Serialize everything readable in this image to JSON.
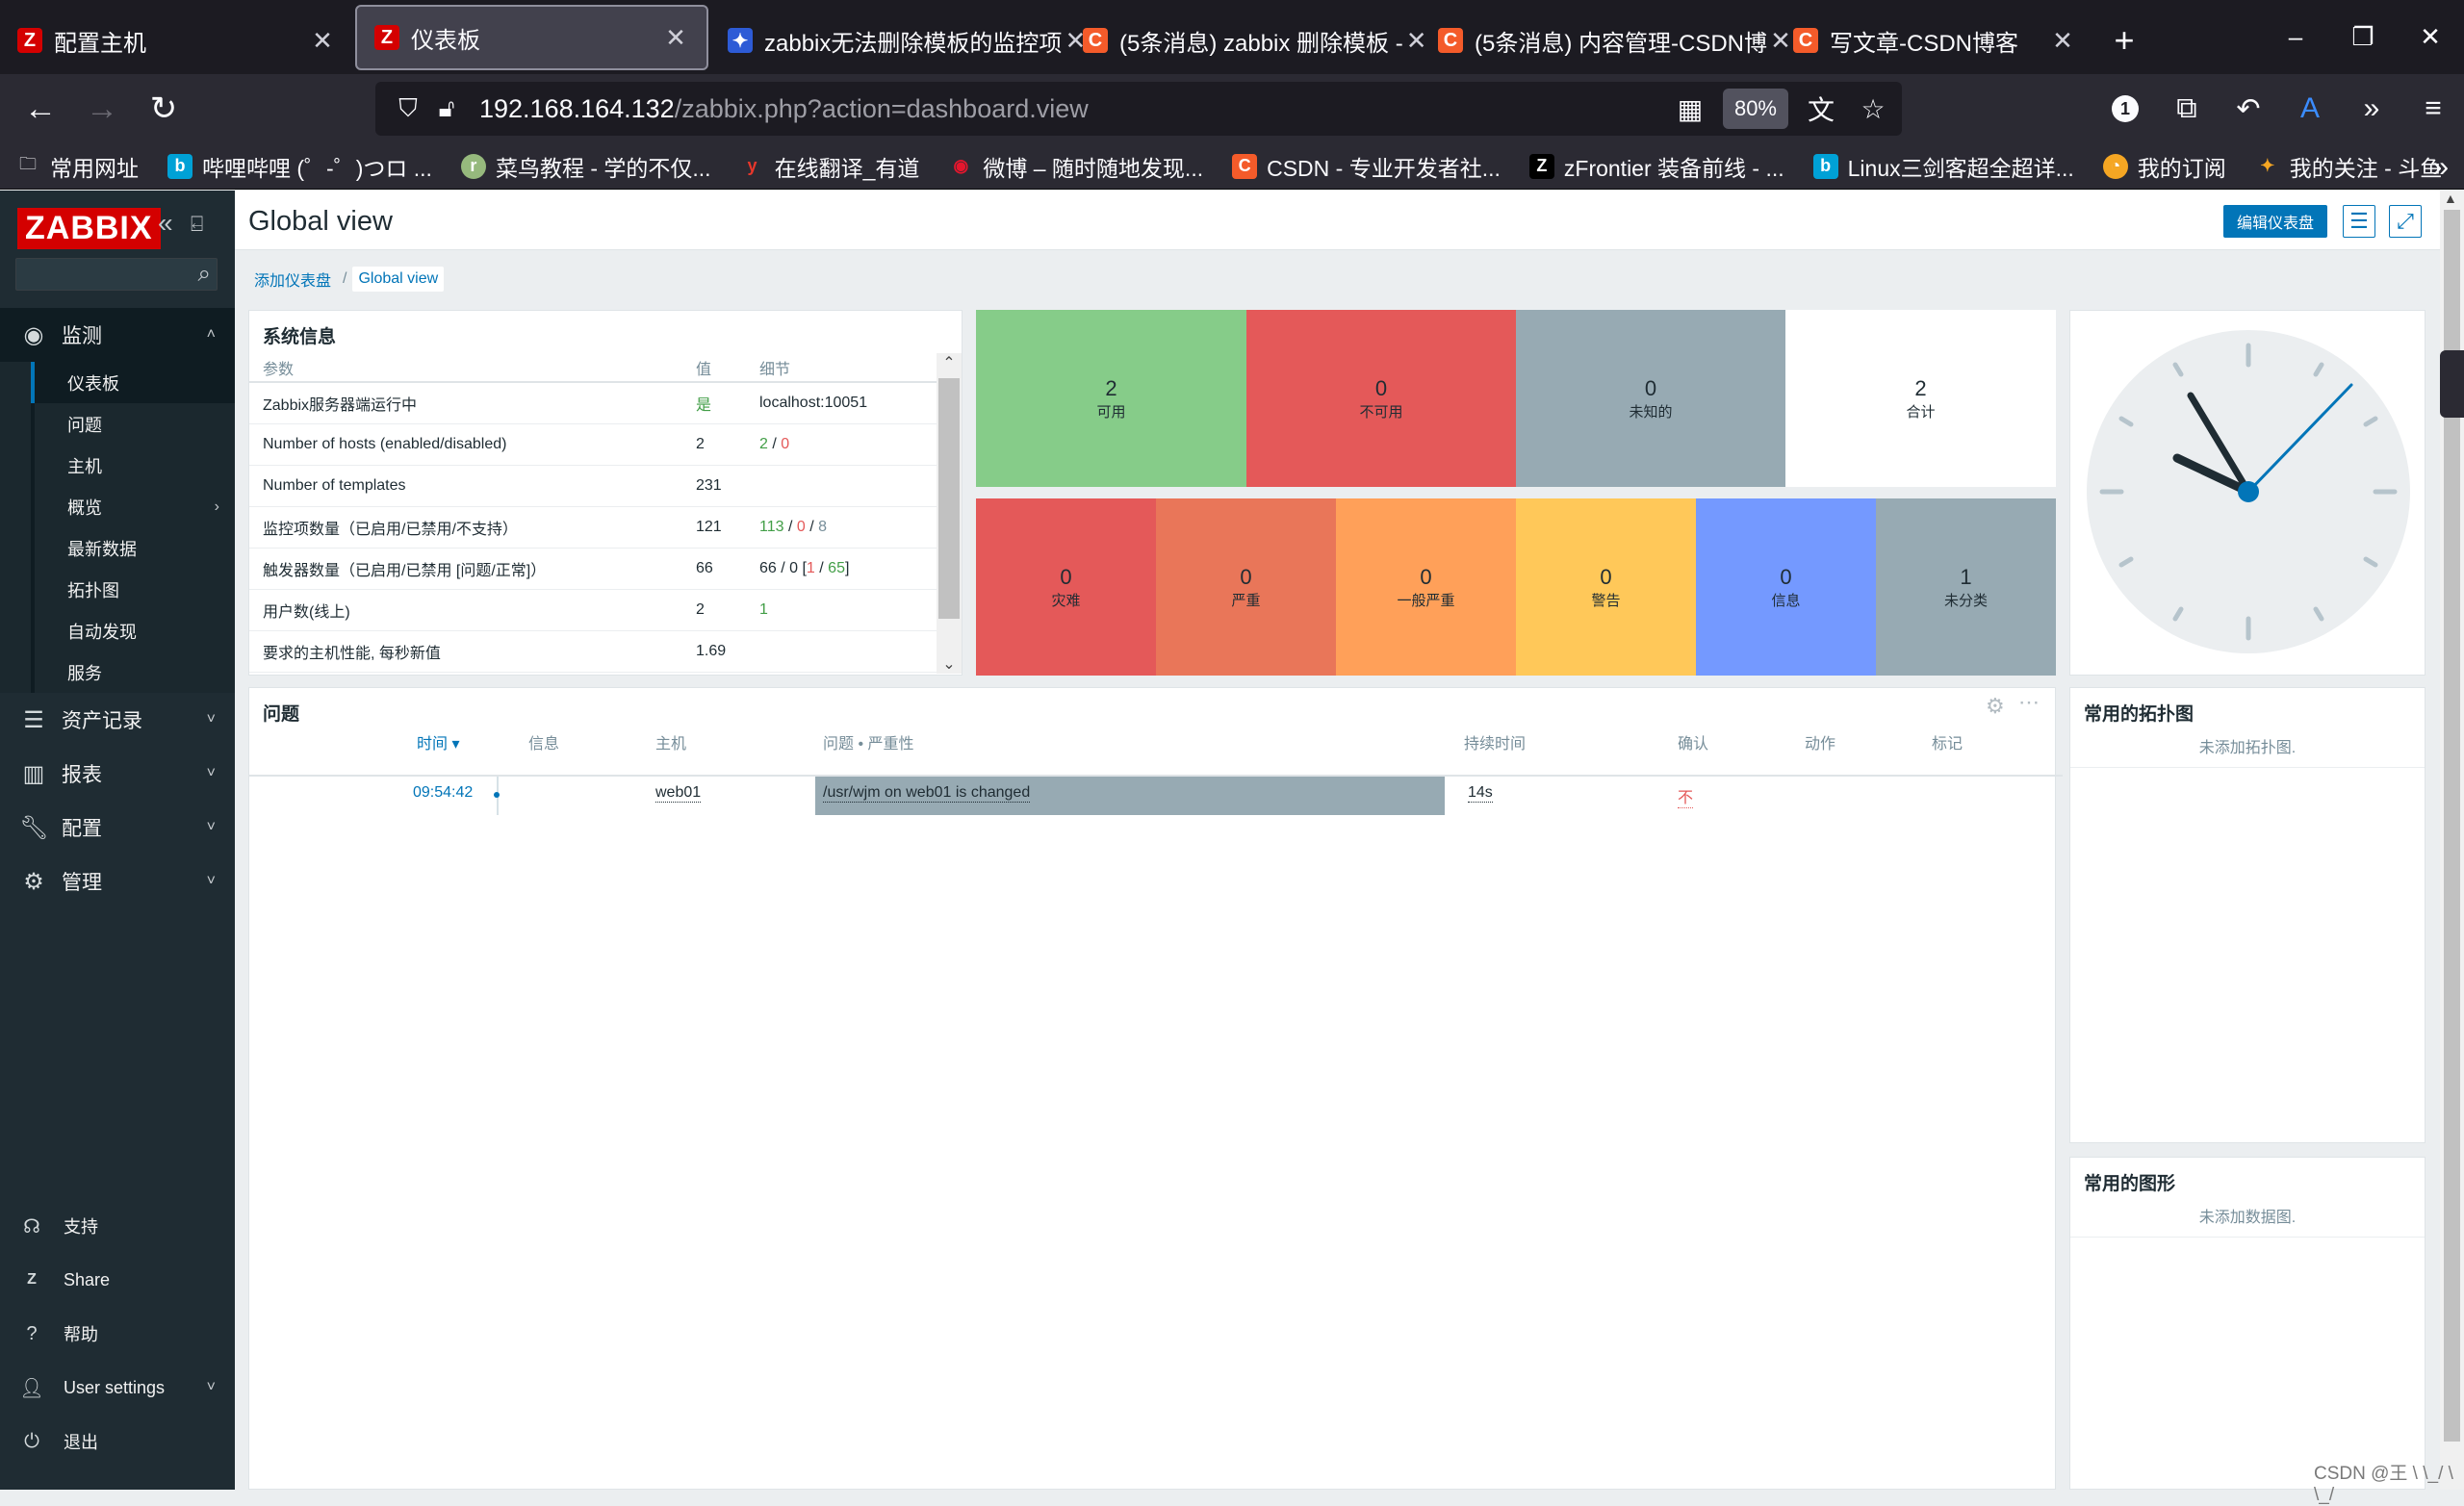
{
  "browser": {
    "tabs": [
      {
        "title": "配置主机",
        "favicon": "Z",
        "color": "#d40000"
      },
      {
        "title": "仪表板",
        "favicon": "Z",
        "color": "#d40000",
        "active": true
      },
      {
        "title": "zabbix无法删除模板的监控项",
        "favicon": "✦",
        "color": "#2d5bd6"
      },
      {
        "title": "(5条消息) zabbix 删除模板 -",
        "favicon": "C",
        "color": "#f45b2a"
      },
      {
        "title": "(5条消息) 内容管理-CSDN博",
        "favicon": "C",
        "color": "#f45b2a"
      },
      {
        "title": "写文章-CSDN博客",
        "favicon": "C",
        "color": "#f45b2a"
      }
    ],
    "url_host": "192.168.164.132",
    "url_path": "/zabbix.php?action=dashboard.view",
    "zoom": "80%",
    "badge": "1",
    "bookmarks": [
      {
        "label": "常用网址",
        "icon": "folder-icon"
      },
      {
        "label": "哔哩哔哩 (゜-゜)つロ ...",
        "icon": "bilibili-icon"
      },
      {
        "label": "菜鸟教程 - 学的不仅...",
        "icon": "runoob-icon"
      },
      {
        "label": "在线翻译_有道",
        "icon": "youdao-icon"
      },
      {
        "label": "微博 – 随时随地发现...",
        "icon": "weibo-icon"
      },
      {
        "label": "CSDN - 专业开发者社...",
        "icon": "csdn-icon"
      },
      {
        "label": "zFrontier 装备前线 - ...",
        "icon": "zfrontier-icon"
      },
      {
        "label": "Linux三剑客超全超详...",
        "icon": "bilibili-icon"
      },
      {
        "label": "我的订阅",
        "icon": "subscription-icon"
      },
      {
        "label": "我的关注 - 斗鱼",
        "icon": "douyu-icon"
      }
    ]
  },
  "sidebar": {
    "logo": "ZABBIX",
    "main": [
      {
        "label": "监测",
        "icon": "eye-icon",
        "open": true
      },
      {
        "label": "资产记录",
        "icon": "list-icon"
      },
      {
        "label": "报表",
        "icon": "bar-chart-icon"
      },
      {
        "label": "配置",
        "icon": "wrench-icon"
      },
      {
        "label": "管理",
        "icon": "gear-icon"
      }
    ],
    "submenu": [
      "仪表板",
      "问题",
      "主机",
      "概览",
      "最新数据",
      "拓扑图",
      "自动发现",
      "服务"
    ],
    "bottom": [
      {
        "label": "支持",
        "icon": "headset-icon"
      },
      {
        "label": "Share",
        "icon": "share-icon"
      },
      {
        "label": "帮助",
        "icon": "help-icon"
      },
      {
        "label": "User settings",
        "icon": "user-icon"
      },
      {
        "label": "退出",
        "icon": "power-icon"
      }
    ]
  },
  "header": {
    "title": "Global view",
    "edit_label": "编辑仪表盘"
  },
  "breadcrumb": [
    "添加仪表盘",
    "Global view"
  ],
  "sysinfo": {
    "title": "系统信息",
    "headers": [
      "参数",
      "值",
      "细节"
    ],
    "rows": [
      {
        "param": "Zabbix服务器端运行中",
        "value": "是",
        "detail": "localhost:10051"
      },
      {
        "param": "Number of hosts (enabled/disabled)",
        "value": "2",
        "d1": "2",
        "d2": "0"
      },
      {
        "param": "Number of templates",
        "value": "231",
        "detail": ""
      },
      {
        "param": "监控项数量（已启用/已禁用/不支持）",
        "value": "121",
        "d1": "113",
        "d2": "0",
        "d3": "8"
      },
      {
        "param": "触发器数量（已启用/已禁用 [问题/正常]）",
        "value": "66",
        "d1": "66 / 0 [",
        "d2": "1",
        "d3": "65",
        "d4": "]"
      },
      {
        "param": "用户数(线上)",
        "value": "2",
        "detail": "1"
      },
      {
        "param": "要求的主机性能, 每秒新值",
        "value": "1.69",
        "detail": ""
      }
    ]
  },
  "host_availability": [
    {
      "count": "2",
      "label": "可用",
      "color": "#86cc89"
    },
    {
      "count": "0",
      "label": "不可用",
      "color": "#e45959"
    },
    {
      "count": "0",
      "label": "未知的",
      "color": "#97aab3"
    },
    {
      "count": "2",
      "label": "合计",
      "color": "#ffffff"
    }
  ],
  "severity": [
    {
      "count": "0",
      "label": "灾难",
      "color": "#e45959"
    },
    {
      "count": "0",
      "label": "严重",
      "color": "#e97659"
    },
    {
      "count": "0",
      "label": "一般严重",
      "color": "#ffa059"
    },
    {
      "count": "0",
      "label": "警告",
      "color": "#ffc859"
    },
    {
      "count": "0",
      "label": "信息",
      "color": "#7499ff"
    },
    {
      "count": "1",
      "label": "未分类",
      "color": "#97aab3"
    }
  ],
  "problems": {
    "title": "问题",
    "headers": [
      "时间 ▾",
      "信息",
      "主机",
      "问题 • 严重性",
      "持续时间",
      "确认",
      "动作",
      "标记"
    ],
    "rows": [
      {
        "time": "09:54:42",
        "host": "web01",
        "problem": "/usr/wjm on web01 is changed",
        "duration": "14s",
        "ack": "不"
      }
    ]
  },
  "fav_maps": {
    "title": "常用的拓扑图",
    "empty": "未添加拓扑图."
  },
  "fav_graphs": {
    "title": "常用的图形",
    "empty": "未添加数据图."
  },
  "watermark": "CSDN @王 \\ \\_/ \\ \\_/"
}
